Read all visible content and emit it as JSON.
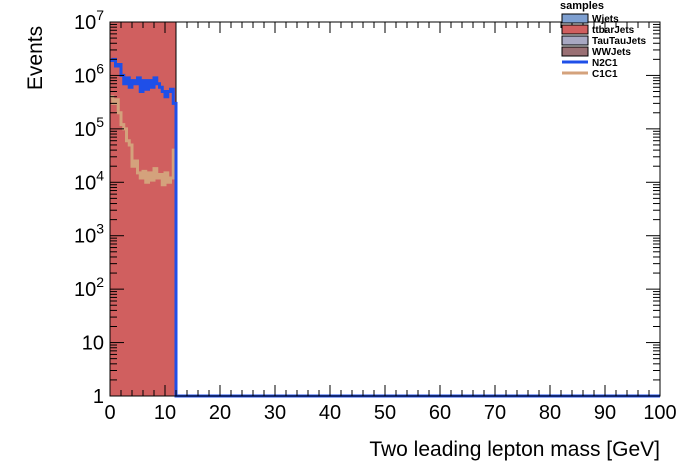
{
  "chart_data": {
    "type": "histogram",
    "xlabel": "Two leading lepton mass [GeV]",
    "ylabel": "Events",
    "xlim": [
      0,
      100
    ],
    "ylim": [
      1,
      10000000
    ],
    "log_y": true,
    "x_ticks": [
      0,
      10,
      20,
      30,
      40,
      50,
      60,
      70,
      80,
      90,
      100
    ],
    "x_tick_labels": [
      "0",
      "10",
      "20",
      "30",
      "40",
      "50",
      "60",
      "70",
      "80",
      "90",
      "100"
    ],
    "y_ticks": [
      {
        "value": 1,
        "base": "1",
        "exp": ""
      },
      {
        "value": 10,
        "base": "10",
        "exp": ""
      },
      {
        "value": 100,
        "base": "10",
        "exp": "2"
      },
      {
        "value": 1000,
        "base": "10",
        "exp": "3"
      },
      {
        "value": 10000,
        "base": "10",
        "exp": "4"
      },
      {
        "value": 100000,
        "base": "10",
        "exp": "5"
      },
      {
        "value": 1000000,
        "base": "10",
        "exp": "6"
      },
      {
        "value": 10000000,
        "base": "10",
        "exp": "7"
      }
    ],
    "legend": {
      "title": "samples",
      "placement": "top-right",
      "entries": [
        {
          "label": "Wjets",
          "kind": "fill",
          "color": "#7e9fd0"
        },
        {
          "label": "ttbarJets",
          "kind": "fill",
          "color": "#d05f5f"
        },
        {
          "label": "TauTauJets",
          "kind": "fill",
          "color": "#a8a8c2"
        },
        {
          "label": "WWJets",
          "kind": "fill",
          "color": "#9a7074"
        },
        {
          "label": "N2C1",
          "kind": "line",
          "color": "#1f4fe8"
        },
        {
          "label": "C1C1",
          "kind": "line",
          "color": "#d4a27c"
        }
      ]
    },
    "stacked_fill": {
      "name": "ttbarJets",
      "color": "#d05f5f",
      "x_range": [
        0,
        12
      ],
      "value": 10000000
    },
    "series": [
      {
        "name": "N2C1",
        "color": "#1f4fe8",
        "x": [
          0,
          0.5,
          1,
          1.5,
          2,
          2.5,
          3,
          3.5,
          4,
          4.5,
          5,
          5.5,
          6,
          6.5,
          7,
          7.5,
          8,
          8.5,
          9,
          9.5,
          10,
          10.5,
          11,
          11.5
        ],
        "values": [
          1900000,
          2000000,
          1500000,
          1600000,
          1000000,
          700000,
          900000,
          600000,
          800000,
          700000,
          900000,
          500000,
          800000,
          550000,
          800000,
          600000,
          900000,
          700000,
          600000,
          500000,
          400000,
          500000,
          550000,
          300000
        ],
        "after_value": 1
      },
      {
        "name": "C1C1",
        "color": "#d4a27c",
        "x": [
          0,
          0.5,
          1,
          1.5,
          2,
          2.5,
          3,
          3.5,
          4,
          4.5,
          5,
          5.5,
          6,
          6.5,
          7,
          7.5,
          8,
          8.5,
          9,
          9.5,
          10,
          10.5,
          11,
          11.5
        ],
        "values": [
          400000,
          300000,
          350000,
          200000,
          120000,
          100000,
          60000,
          50000,
          20000,
          25000,
          15000,
          12000,
          16000,
          10000,
          15000,
          11000,
          18000,
          12000,
          14000,
          9000,
          15000,
          10000,
          12000,
          40000
        ],
        "after_value": 1
      }
    ]
  }
}
